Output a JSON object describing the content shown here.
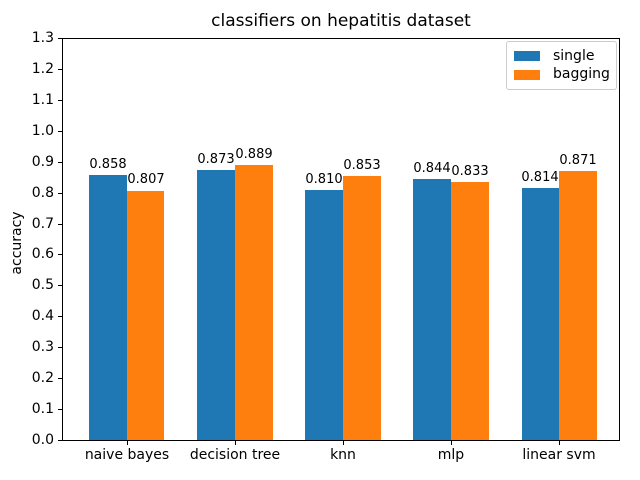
{
  "title": "classifiers on hepatitis dataset",
  "chart_data": {
    "type": "bar",
    "title": "classifiers on hepatitis dataset",
    "categories": [
      "naive bayes",
      "decision tree",
      "knn",
      "mlp",
      "linear svm"
    ],
    "series": [
      {
        "name": "single",
        "color": "#1f77b4",
        "values": [
          0.858,
          0.873,
          0.81,
          0.844,
          0.814
        ]
      },
      {
        "name": "bagging",
        "color": "#ff7f0e",
        "values": [
          0.807,
          0.889,
          0.853,
          0.833,
          0.871
        ]
      }
    ],
    "xlabel": "",
    "ylabel": "accuracy",
    "ylim": [
      0.0,
      1.3
    ],
    "ytick_step": 0.1,
    "ytick_labels": [
      "0.0",
      "0.1",
      "0.2",
      "0.3",
      "0.4",
      "0.5",
      "0.6",
      "0.7",
      "0.8",
      "0.9",
      "1.0",
      "1.1",
      "1.2",
      "1.3"
    ],
    "value_label_decimals": 3,
    "bar_width_fraction": 0.35,
    "grid": false,
    "legend_position": "upper right",
    "colors": {
      "axis": "#000000",
      "background": "#ffffff",
      "legend_border": "#cccccc"
    }
  }
}
